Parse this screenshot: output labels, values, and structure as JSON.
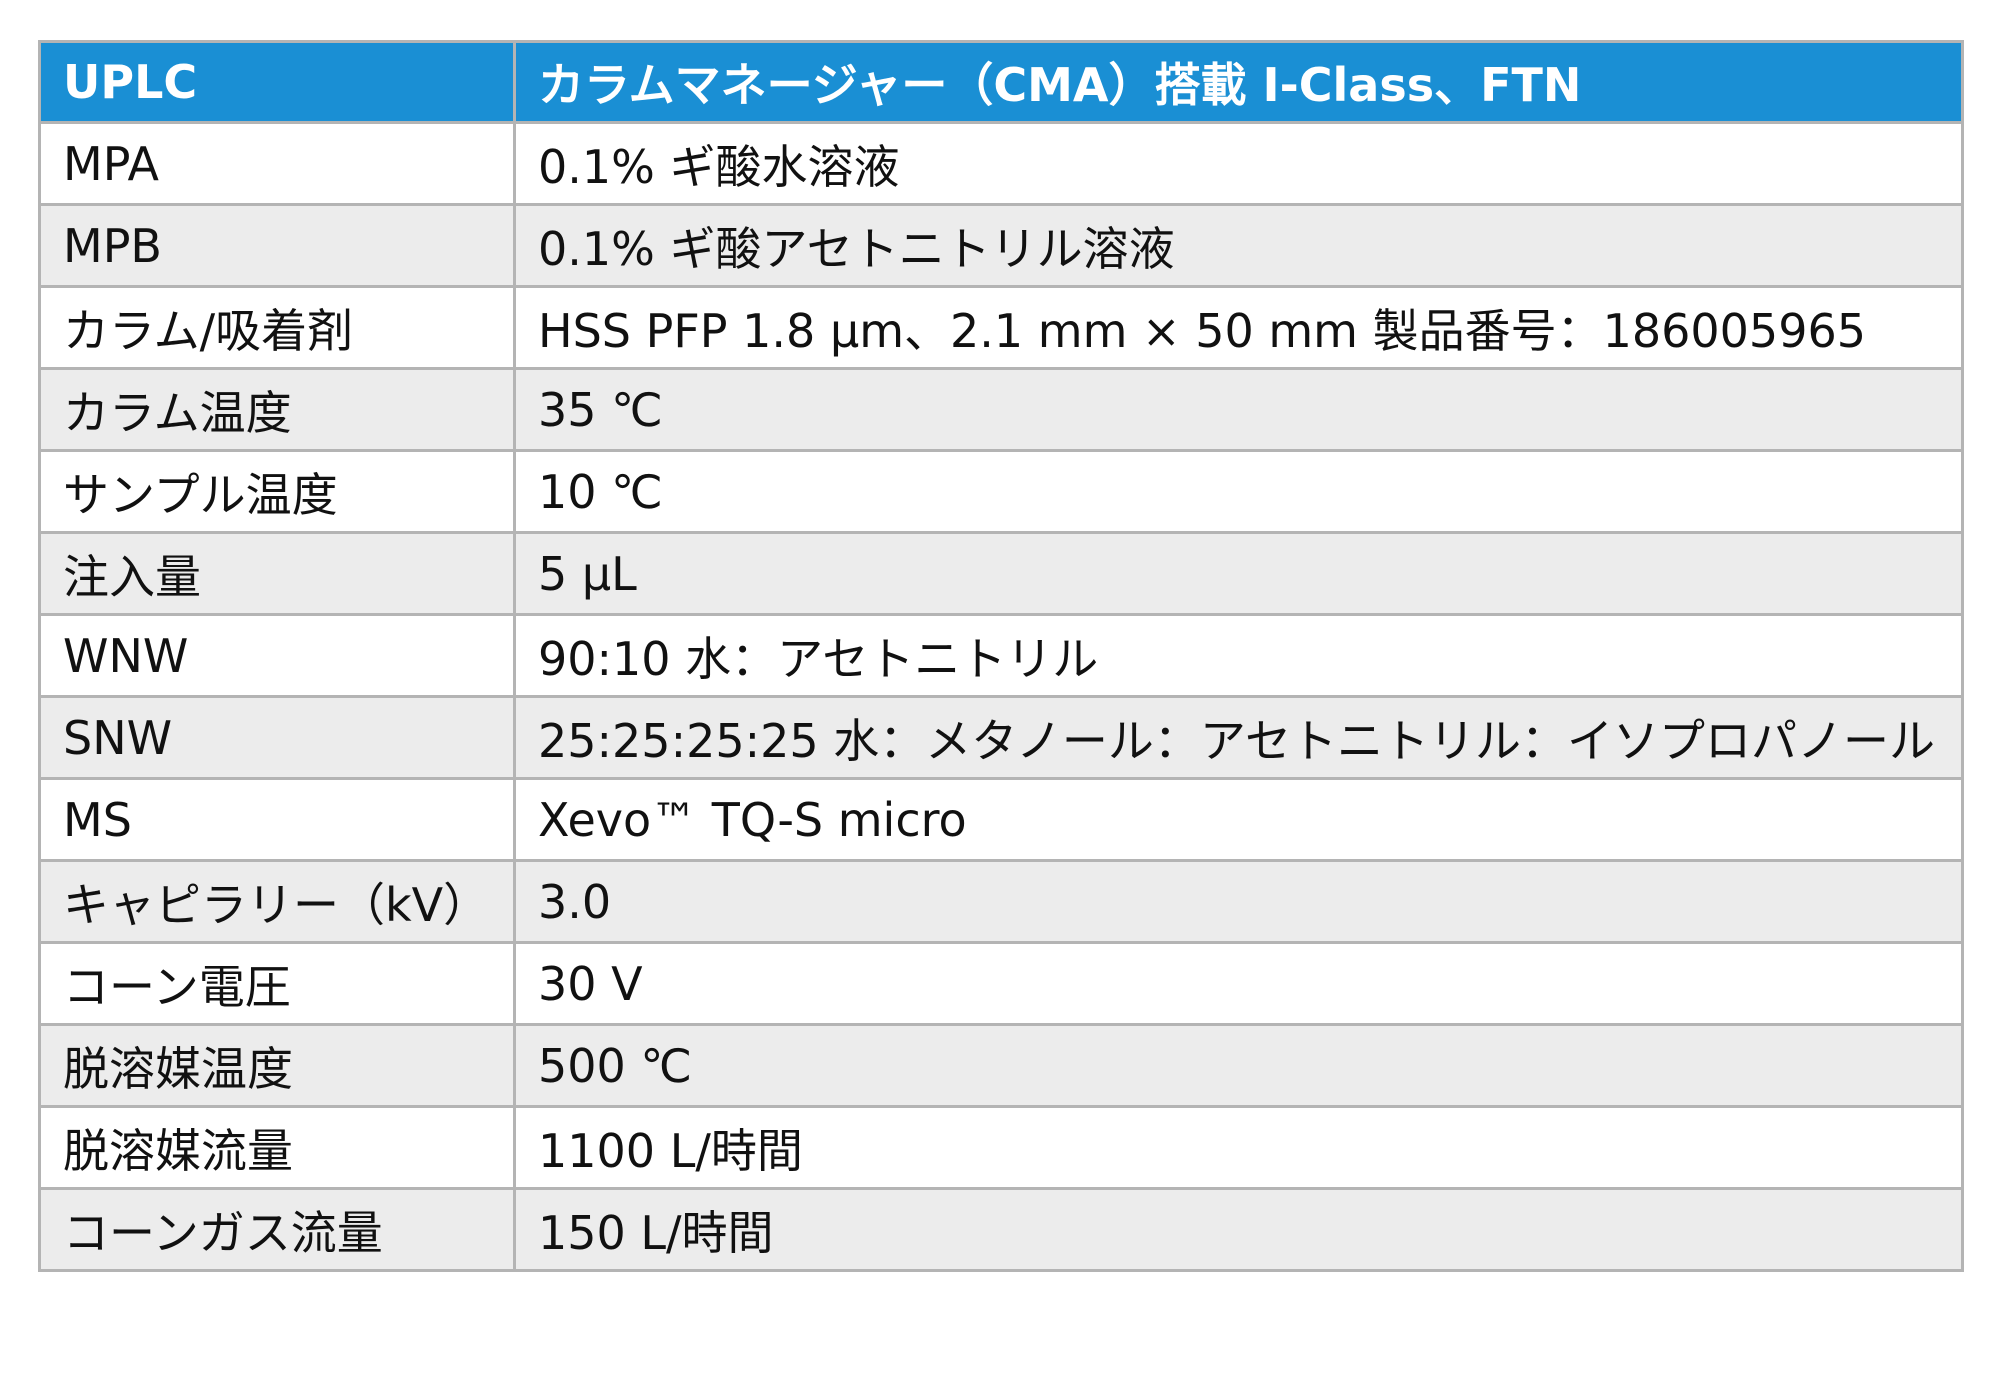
{
  "table": {
    "header": [
      "UPLC",
      "カラムマネージャー（CMA）搭載 I-Class、FTN"
    ],
    "rows": [
      [
        "MPA",
        "0.1% ギ酸水溶液"
      ],
      [
        "MPB",
        "0.1% ギ酸アセトニトリル溶液"
      ],
      [
        "カラム/吸着剤",
        "HSS PFP 1.8 µm、2.1 mm × 50 mm 製品番号：186005965"
      ],
      [
        "カラム温度",
        "35 ℃"
      ],
      [
        "サンプル温度",
        "10 ℃"
      ],
      [
        "注入量",
        "5 µL"
      ],
      [
        "WNW",
        "90:10 水：アセトニトリル"
      ],
      [
        "SNW",
        "25:25:25:25 水：メタノール：アセトニトリル：イソプロパノール"
      ],
      [
        "MS",
        "Xevo™ TQ-S micro"
      ],
      [
        "キャピラリー（kV）",
        "3.0"
      ],
      [
        "コーン電圧",
        "30 V"
      ],
      [
        "脱溶媒温度",
        "500 ℃"
      ],
      [
        "脱溶媒流量",
        "1100 L/時間"
      ],
      [
        "コーンガス流量",
        "150 L/時間"
      ]
    ]
  }
}
